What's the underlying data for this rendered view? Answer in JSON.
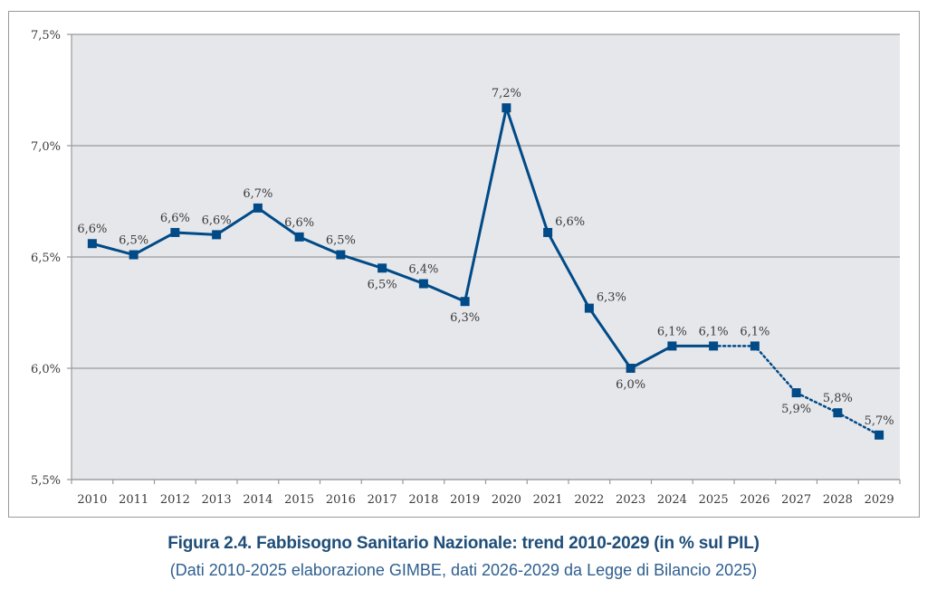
{
  "chart_data": {
    "type": "line",
    "title": "",
    "xlabel": "",
    "ylabel": "",
    "ylim": [
      5.5,
      7.5
    ],
    "y_ticks": [
      5.5,
      6.0,
      6.5,
      7.0,
      7.5
    ],
    "y_tick_labels": [
      "5,5%",
      "6,0%",
      "6,5%",
      "7,0%",
      "7,5%"
    ],
    "grid": true,
    "legend": "none",
    "categories": [
      "2010",
      "2011",
      "2012",
      "2013",
      "2014",
      "2015",
      "2016",
      "2017",
      "2018",
      "2019",
      "2020",
      "2021",
      "2022",
      "2023",
      "2024",
      "2025",
      "2026",
      "2027",
      "2028",
      "2029"
    ],
    "series": [
      {
        "name": "Fabbisogno Sanitario Nazionale (% PIL)",
        "color": "#004a87",
        "values": [
          6.56,
          6.51,
          6.61,
          6.6,
          6.72,
          6.59,
          6.51,
          6.45,
          6.38,
          6.3,
          7.17,
          6.61,
          6.27,
          6.0,
          6.1,
          6.1,
          6.1,
          5.89,
          5.8,
          5.7
        ],
        "data_labels": [
          "6,6%",
          "6,5%",
          "6,6%",
          "6,6%",
          "6,7%",
          "6,6%",
          "6,5%",
          "6,5%",
          "6,4%",
          "6,3%",
          "7,2%",
          "6,6%",
          "6,3%",
          "6,0%",
          "6,1%",
          "6,1%",
          "6,1%",
          "5,9%",
          "5,8%",
          "5,7%"
        ],
        "label_position": [
          "above",
          "above",
          "above",
          "above",
          "above",
          "above",
          "above",
          "below",
          "above",
          "below",
          "above",
          "right",
          "right",
          "below",
          "above",
          "above",
          "above",
          "below",
          "above",
          "above"
        ],
        "solid_until_index": 15,
        "dotted_from_index": 15
      }
    ],
    "plot_background": "#e6e7eb",
    "gridline_color": "#9a9a9a"
  },
  "caption": {
    "title": "Figura 2.4. Fabbisogno Sanitario Nazionale: trend 2010-2029 (in % sul PIL)",
    "subtitle": "(Dati 2010-2025 elaborazione GIMBE, dati 2026-2029 da Legge di Bilancio 2025)"
  }
}
